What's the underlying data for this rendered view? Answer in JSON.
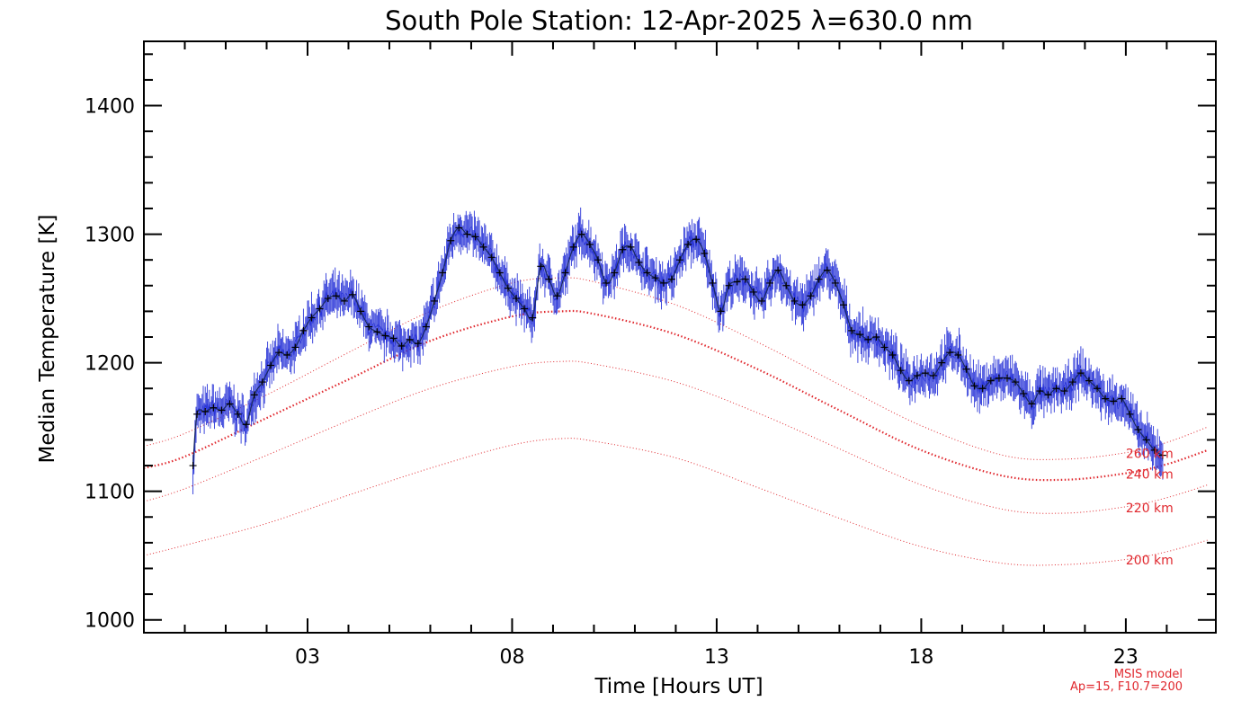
{
  "chart_data": {
    "type": "line",
    "title": "South Pole Station: 12-Apr-2025 λ=630.0 nm",
    "xlabel": "Time [Hours UT]",
    "ylabel": "Median Temperature [K]",
    "xlim": [
      -1,
      25.2
    ],
    "ylim": [
      990,
      1450
    ],
    "x_ticks": [
      3,
      8,
      13,
      18,
      23
    ],
    "x_tick_labels": [
      "03",
      "08",
      "13",
      "18",
      "23"
    ],
    "y_ticks": [
      1000,
      1100,
      1200,
      1300,
      1400
    ],
    "y_tick_labels": [
      "1000",
      "1100",
      "1200",
      "1300",
      "1400"
    ],
    "note": [
      "MSIS model",
      "Ap=15, F10.7=200"
    ],
    "colors": {
      "observed_error": "#2b36d8",
      "observed_marker": "#000000",
      "model": "#e0282e"
    },
    "series": [
      {
        "name": "Observed median temperature",
        "x": [
          0.2,
          0.3,
          0.5,
          0.7,
          0.9,
          1.1,
          1.3,
          1.5,
          1.7,
          1.9,
          2.1,
          2.3,
          2.5,
          2.7,
          2.9,
          3.1,
          3.3,
          3.5,
          3.7,
          3.9,
          4.1,
          4.3,
          4.5,
          4.7,
          4.9,
          5.1,
          5.3,
          5.5,
          5.7,
          5.9,
          6.1,
          6.3,
          6.5,
          6.7,
          6.9,
          7.1,
          7.3,
          7.5,
          7.7,
          7.9,
          8.1,
          8.3,
          8.5,
          8.7,
          8.9,
          9.1,
          9.3,
          9.5,
          9.7,
          9.9,
          10.1,
          10.3,
          10.5,
          10.7,
          10.9,
          11.1,
          11.3,
          11.5,
          11.7,
          11.9,
          12.1,
          12.3,
          12.5,
          12.7,
          12.9,
          13.1,
          13.3,
          13.5,
          13.7,
          13.9,
          14.1,
          14.3,
          14.5,
          14.7,
          14.9,
          15.1,
          15.3,
          15.5,
          15.7,
          15.9,
          16.1,
          16.3,
          16.5,
          16.7,
          16.9,
          17.1,
          17.3,
          17.5,
          17.7,
          17.9,
          18.1,
          18.3,
          18.5,
          18.7,
          18.9,
          19.1,
          19.3,
          19.5,
          19.7,
          19.9,
          20.1,
          20.3,
          20.5,
          20.7,
          20.9,
          21.1,
          21.3,
          21.5,
          21.7,
          21.9,
          22.1,
          22.3,
          22.5,
          22.7,
          22.9,
          23.1,
          23.3,
          23.5,
          23.7,
          23.9
        ],
        "values": [
          1120,
          1160,
          1162,
          1165,
          1163,
          1168,
          1160,
          1152,
          1175,
          1185,
          1198,
          1208,
          1206,
          1212,
          1225,
          1235,
          1242,
          1250,
          1252,
          1248,
          1253,
          1240,
          1228,
          1224,
          1221,
          1219,
          1213,
          1218,
          1215,
          1228,
          1248,
          1270,
          1295,
          1305,
          1300,
          1298,
          1290,
          1282,
          1270,
          1258,
          1250,
          1242,
          1235,
          1275,
          1265,
          1252,
          1270,
          1290,
          1300,
          1292,
          1280,
          1262,
          1270,
          1288,
          1290,
          1278,
          1270,
          1266,
          1262,
          1265,
          1280,
          1292,
          1296,
          1285,
          1262,
          1240,
          1260,
          1263,
          1265,
          1255,
          1248,
          1262,
          1272,
          1260,
          1248,
          1245,
          1252,
          1265,
          1272,
          1262,
          1245,
          1225,
          1222,
          1218,
          1220,
          1212,
          1206,
          1194,
          1186,
          1190,
          1192,
          1190,
          1200,
          1208,
          1206,
          1195,
          1182,
          1180,
          1186,
          1188,
          1188,
          1185,
          1176,
          1168,
          1178,
          1175,
          1180,
          1178,
          1185,
          1192,
          1186,
          1180,
          1172,
          1170,
          1172,
          1160,
          1148,
          1140,
          1132,
          1128
        ]
      },
      {
        "name": "MSIS 260 km",
        "label": "260 km",
        "x": [
          -1,
          0,
          2,
          4,
          6,
          8,
          9.2,
          10,
          12,
          14,
          16,
          18,
          20,
          21.5,
          23,
          24,
          25
        ],
        "values": [
          1135,
          1145,
          1175,
          1208,
          1240,
          1262,
          1266,
          1263,
          1245,
          1216,
          1183,
          1151,
          1128,
          1125,
          1130,
          1138,
          1150
        ]
      },
      {
        "name": "MSIS 240 km",
        "label": "240 km",
        "x": [
          -1,
          0,
          2,
          4,
          6,
          8,
          9.2,
          10,
          12,
          14,
          16,
          18,
          20,
          21.5,
          23,
          24,
          25
        ],
        "values": [
          1118,
          1127,
          1157,
          1187,
          1217,
          1236,
          1240,
          1238,
          1222,
          1195,
          1163,
          1132,
          1112,
          1109,
          1114,
          1121,
          1132
        ]
      },
      {
        "name": "MSIS 220 km",
        "label": "220 km",
        "x": [
          -1,
          0,
          2,
          4,
          6,
          8,
          9.2,
          10,
          12,
          14,
          16,
          18,
          20,
          21.5,
          23,
          24,
          25
        ],
        "values": [
          1092,
          1102,
          1128,
          1155,
          1180,
          1197,
          1201,
          1199,
          1185,
          1161,
          1133,
          1105,
          1086,
          1083,
          1088,
          1095,
          1105
        ]
      },
      {
        "name": "MSIS 200 km",
        "label": "200 km",
        "x": [
          -1,
          0,
          2,
          4,
          6,
          8,
          9.2,
          10,
          12,
          14,
          16,
          18,
          20,
          21.5,
          23,
          24,
          25
        ],
        "values": [
          1050,
          1058,
          1075,
          1097,
          1118,
          1136,
          1141,
          1139,
          1126,
          1103,
          1079,
          1057,
          1044,
          1043,
          1047,
          1053,
          1062
        ]
      }
    ]
  }
}
